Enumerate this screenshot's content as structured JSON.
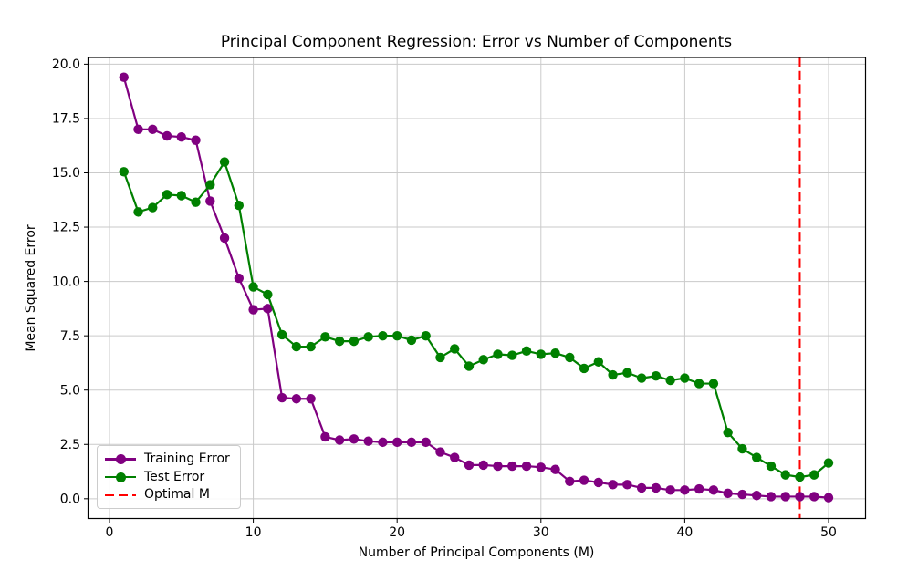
{
  "figure": {
    "background": "#ffffff"
  },
  "chart_data": {
    "type": "line",
    "title": "Principal Component Regression: Error vs Number of Components",
    "xlabel": "Number of Principal Components (M)",
    "ylabel": "Mean Squared Error",
    "x": [
      1,
      2,
      3,
      4,
      5,
      6,
      7,
      8,
      9,
      10,
      11,
      12,
      13,
      14,
      15,
      16,
      17,
      18,
      19,
      20,
      21,
      22,
      23,
      24,
      25,
      26,
      27,
      28,
      29,
      30,
      31,
      32,
      33,
      34,
      35,
      36,
      37,
      38,
      39,
      40,
      41,
      42,
      43,
      44,
      45,
      46,
      47,
      48,
      49,
      50
    ],
    "series": [
      {
        "name": "Training Error",
        "color": "#800080",
        "linestyle": "solid",
        "marker": "circle",
        "values": [
          19.4,
          17.0,
          17.0,
          16.7,
          16.65,
          16.5,
          13.7,
          12.0,
          10.15,
          8.7,
          8.75,
          4.65,
          4.6,
          4.6,
          2.85,
          2.7,
          2.75,
          2.65,
          2.6,
          2.6,
          2.6,
          2.6,
          2.15,
          1.9,
          1.55,
          1.55,
          1.5,
          1.5,
          1.5,
          1.45,
          1.35,
          0.8,
          0.85,
          0.75,
          0.65,
          0.65,
          0.5,
          0.5,
          0.4,
          0.4,
          0.45,
          0.4,
          0.25,
          0.2,
          0.15,
          0.1,
          0.1,
          0.1,
          0.1,
          0.05
        ]
      },
      {
        "name": "Test Error",
        "color": "#008000",
        "linestyle": "solid",
        "marker": "circle",
        "values": [
          15.05,
          13.2,
          13.4,
          14.0,
          13.95,
          13.65,
          14.45,
          15.5,
          13.5,
          9.75,
          9.4,
          7.55,
          7.0,
          7.0,
          7.45,
          7.25,
          7.25,
          7.45,
          7.5,
          7.5,
          7.3,
          7.5,
          6.5,
          6.9,
          6.1,
          6.4,
          6.65,
          6.6,
          6.8,
          6.65,
          6.7,
          6.5,
          6.0,
          6.3,
          5.7,
          5.8,
          5.55,
          5.65,
          5.45,
          5.55,
          5.3,
          5.3,
          3.05,
          2.3,
          1.9,
          1.5,
          1.1,
          1.0,
          1.1,
          1.65
        ]
      }
    ],
    "vline": {
      "label": "Optimal M",
      "x": 48,
      "color": "#ff0000",
      "linestyle": "dashed"
    },
    "xticks": [
      0,
      10,
      20,
      30,
      40,
      50
    ],
    "xtick_labels": [
      "0",
      "10",
      "20",
      "30",
      "40",
      "50"
    ],
    "yticks": [
      0.0,
      2.5,
      5.0,
      7.5,
      10.0,
      12.5,
      15.0,
      17.5,
      20.0
    ],
    "ytick_labels": [
      "0.0",
      "2.5",
      "5.0",
      "7.5",
      "10.0",
      "12.5",
      "15.0",
      "17.5",
      "20.0"
    ],
    "xlim": [
      -1.49,
      52.57
    ],
    "ylim": [
      -0.91,
      20.31
    ],
    "grid": true,
    "grid_color": "#cacaca",
    "axis_color": "#000000",
    "legend_position": "lower left"
  }
}
